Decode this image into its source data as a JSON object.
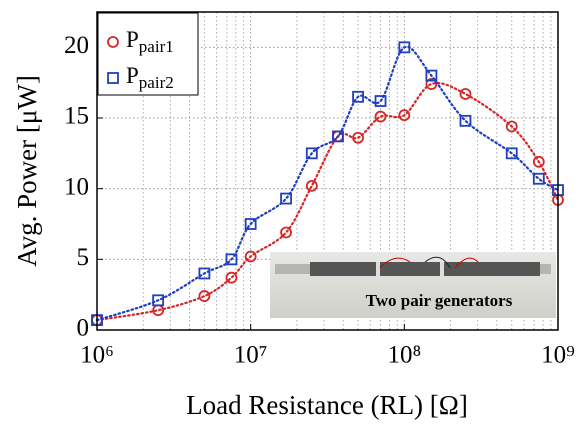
{
  "chart_data": {
    "type": "scatter",
    "xlabel": "Load Resistance (RL) [Ω]",
    "ylabel": "Avg. Power [μW]",
    "x": [
      1000000,
      2500000,
      5000000,
      7500000,
      10000000,
      17000000,
      25000000,
      37000000,
      50000000,
      70000000,
      100000000,
      150000000,
      250000000,
      500000000,
      750000000,
      1000000000
    ],
    "series": [
      {
        "name": "Ppair1",
        "color": "#d62728",
        "marker": "circle",
        "values": [
          0.7,
          1.4,
          2.4,
          3.7,
          5.2,
          6.9,
          10.2,
          13.7,
          13.6,
          15.1,
          15.2,
          17.4,
          16.7,
          14.4,
          11.9,
          9.2
        ]
      },
      {
        "name": "Ppair2",
        "color": "#1f3fbf",
        "marker": "square",
        "values": [
          0.7,
          2.1,
          4.0,
          5.0,
          7.5,
          9.3,
          12.5,
          13.7,
          16.5,
          16.2,
          20.0,
          18.0,
          14.8,
          12.5,
          10.7,
          9.9
        ]
      }
    ],
    "xlog": true,
    "xlim": [
      1000000,
      1000000000
    ],
    "xticks": [
      {
        "value": 1000000,
        "label": "10⁶"
      },
      {
        "value": 10000000,
        "label": "10⁷"
      },
      {
        "value": 100000000,
        "label": "10⁸"
      },
      {
        "value": 1000000000,
        "label": "10⁹"
      }
    ],
    "ylim": [
      0,
      22.5
    ],
    "yticks": [
      0,
      5,
      10,
      15,
      20
    ],
    "grid": true,
    "legend": "upper left",
    "inset_label": "Two pair generators"
  }
}
